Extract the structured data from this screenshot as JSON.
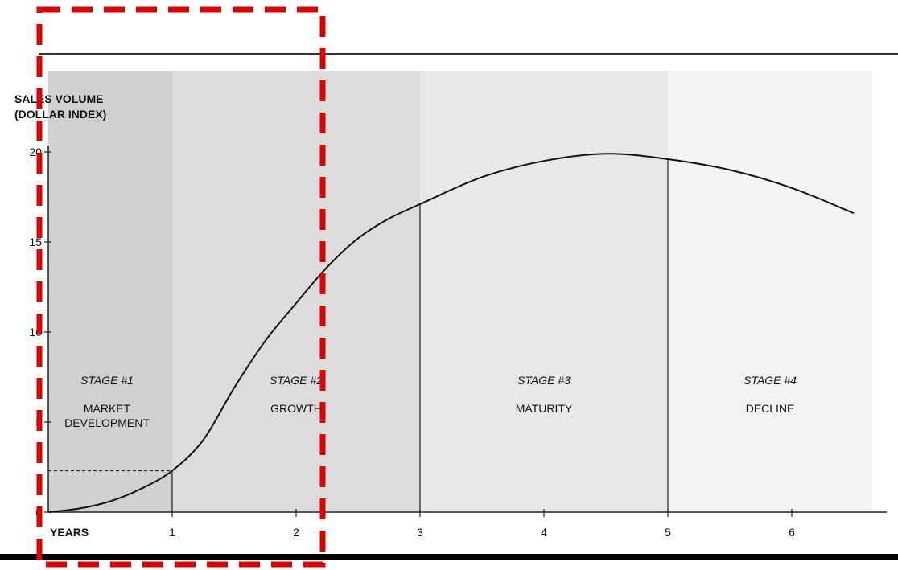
{
  "chart_data": {
    "type": "line",
    "title": "",
    "ylabel_line1": "SALES VOLUME",
    "ylabel_line2": "(DOLLAR INDEX)",
    "xlabel": "YEARS",
    "xlim": [
      0,
      6.65
    ],
    "ylim": [
      0,
      20
    ],
    "yticks": [
      0,
      5,
      10,
      15,
      20
    ],
    "xticks": [
      1,
      2,
      3,
      4,
      5,
      6
    ],
    "stages": [
      {
        "number": "STAGE #1",
        "name_lines": [
          "MARKET",
          "DEVELOPMENT"
        ],
        "x_start": 0,
        "x_end": 1,
        "fill": "#d0d0d0"
      },
      {
        "number": "STAGE #2",
        "name_lines": [
          "GROWTH"
        ],
        "x_start": 1,
        "x_end": 3,
        "fill": "#dcdcdc"
      },
      {
        "number": "STAGE #3",
        "name_lines": [
          "MATURITY"
        ],
        "x_start": 3,
        "x_end": 5,
        "fill": "#e8e8e8"
      },
      {
        "number": "STAGE #4",
        "name_lines": [
          "DECLINE"
        ],
        "x_start": 5,
        "x_end": 6.65,
        "fill": "#f3f3f3"
      }
    ],
    "series": [
      {
        "x": [
          0,
          0.25,
          0.5,
          0.75,
          1,
          1.25,
          1.5,
          1.75,
          2,
          2.25,
          2.5,
          2.75,
          3,
          3.5,
          4,
          4.5,
          5,
          5.5,
          6,
          6.5
        ],
        "y": [
          0,
          0.2,
          0.6,
          1.3,
          2.3,
          4.0,
          6.9,
          9.5,
          11.6,
          13.6,
          15.2,
          16.3,
          17.1,
          18.6,
          19.5,
          19.9,
          19.6,
          19.0,
          18.0,
          16.6
        ]
      }
    ],
    "markers": [
      {
        "x": 1,
        "y": 2.3,
        "dashed_to_axis": true
      },
      {
        "x": 3,
        "y": 17.1,
        "dashed_to_axis": false
      },
      {
        "x": 5,
        "y": 19.6,
        "dashed_to_axis": false
      }
    ],
    "highlight": {
      "label": "",
      "color": "#e00000",
      "x_start": 0,
      "x_end": 2.2
    },
    "grid": false,
    "legend": "none"
  }
}
